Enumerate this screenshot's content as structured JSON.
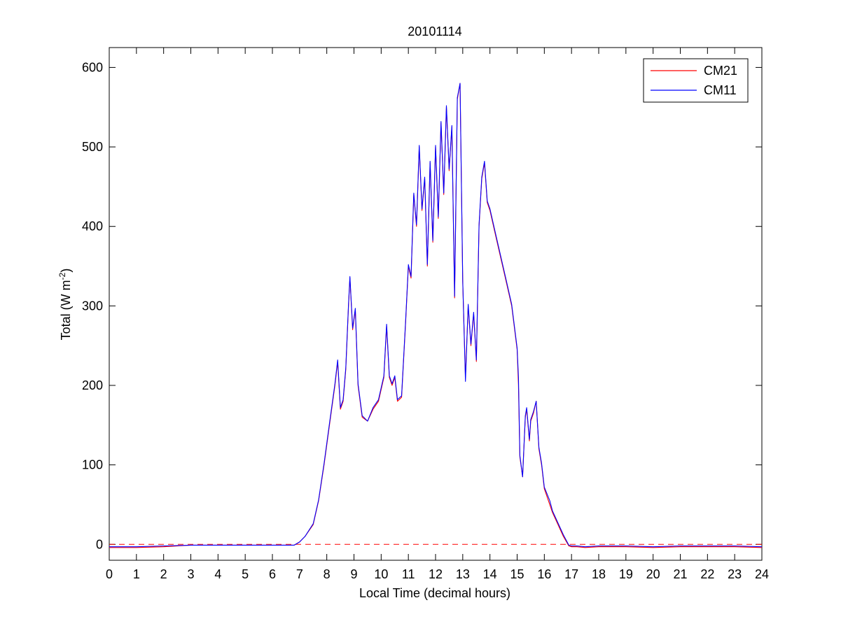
{
  "chart_data": {
    "type": "line",
    "title": "20101114",
    "xlabel": "Local Time (decimal hours)",
    "ylabel": {
      "text": "Total (W m",
      "superscript": "-2",
      "suffix": ")"
    },
    "xlim": [
      0,
      24
    ],
    "ylim": [
      -20,
      625
    ],
    "xticks": [
      0,
      1,
      2,
      3,
      4,
      5,
      6,
      7,
      8,
      9,
      10,
      11,
      12,
      13,
      14,
      15,
      16,
      17,
      18,
      19,
      20,
      21,
      22,
      23,
      24
    ],
    "yticks": [
      0,
      100,
      200,
      300,
      400,
      500,
      600
    ],
    "grid": false,
    "legend_position": "top-right",
    "reference_line": {
      "y": 0,
      "style": "dashed",
      "color": "#ff0000"
    },
    "series": [
      {
        "name": "CM21",
        "color": "#ff0000",
        "x": [
          0,
          1,
          2,
          3,
          4,
          5,
          6,
          6.8,
          7,
          7.2,
          7.5,
          7.7,
          7.9,
          8.1,
          8.3,
          8.4,
          8.5,
          8.6,
          8.7,
          8.8,
          8.85,
          8.95,
          9.05,
          9.15,
          9.3,
          9.5,
          9.7,
          9.9,
          10.1,
          10.2,
          10.3,
          10.4,
          10.5,
          10.6,
          10.75,
          10.9,
          11,
          11.1,
          11.2,
          11.3,
          11.4,
          11.5,
          11.6,
          11.7,
          11.8,
          11.9,
          12,
          12.1,
          12.2,
          12.3,
          12.4,
          12.5,
          12.6,
          12.7,
          12.8,
          12.9,
          13,
          13.1,
          13.2,
          13.3,
          13.4,
          13.5,
          13.6,
          13.7,
          13.8,
          13.9,
          14,
          14.2,
          14.4,
          14.6,
          14.8,
          15,
          15.05,
          15.1,
          15.2,
          15.3,
          15.35,
          15.45,
          15.5,
          15.6,
          15.7,
          15.8,
          15.9,
          16,
          16.2,
          16.3,
          16.5,
          16.7,
          16.9,
          17,
          17.2,
          17.5,
          18,
          19,
          20,
          21,
          22,
          23,
          24
        ],
        "y": [
          -4,
          -4,
          -3,
          -1,
          -1,
          -1,
          -1,
          -1,
          3,
          10,
          25,
          55,
          100,
          150,
          200,
          230,
          170,
          180,
          220,
          300,
          335,
          270,
          295,
          200,
          160,
          155,
          170,
          180,
          210,
          275,
          210,
          200,
          210,
          180,
          185,
          280,
          350,
          335,
          440,
          400,
          500,
          420,
          460,
          350,
          480,
          380,
          500,
          410,
          530,
          440,
          550,
          470,
          525,
          310,
          560,
          580,
          330,
          210,
          300,
          250,
          290,
          230,
          400,
          460,
          480,
          430,
          420,
          390,
          360,
          330,
          300,
          245,
          200,
          110,
          85,
          160,
          170,
          130,
          155,
          165,
          180,
          120,
          100,
          70,
          50,
          40,
          25,
          10,
          -2,
          -3,
          -3,
          -4,
          -3,
          -3,
          -4,
          -3,
          -3,
          -3,
          -4
        ]
      },
      {
        "name": "CM11",
        "color": "#0000ff",
        "x": [
          0,
          1,
          2,
          3,
          4,
          5,
          6,
          6.8,
          7,
          7.2,
          7.5,
          7.7,
          7.9,
          8.1,
          8.3,
          8.4,
          8.5,
          8.6,
          8.7,
          8.8,
          8.85,
          8.95,
          9.05,
          9.15,
          9.3,
          9.5,
          9.7,
          9.9,
          10.1,
          10.2,
          10.3,
          10.4,
          10.5,
          10.6,
          10.75,
          10.9,
          11,
          11.1,
          11.2,
          11.3,
          11.4,
          11.5,
          11.6,
          11.7,
          11.8,
          11.9,
          12,
          12.1,
          12.2,
          12.3,
          12.4,
          12.5,
          12.6,
          12.7,
          12.8,
          12.9,
          13,
          13.1,
          13.2,
          13.3,
          13.4,
          13.5,
          13.6,
          13.7,
          13.8,
          13.9,
          14,
          14.2,
          14.4,
          14.6,
          14.8,
          15,
          15.05,
          15.1,
          15.2,
          15.3,
          15.35,
          15.45,
          15.5,
          15.6,
          15.7,
          15.8,
          15.9,
          16,
          16.2,
          16.3,
          16.5,
          16.7,
          16.9,
          17,
          17.2,
          17.5,
          18,
          19,
          20,
          21,
          22,
          23,
          24
        ],
        "y": [
          -3,
          -3,
          -2,
          -1,
          -1,
          -1,
          -1,
          -1,
          3,
          10,
          26,
          56,
          102,
          152,
          202,
          232,
          172,
          182,
          222,
          302,
          337,
          272,
          297,
          202,
          162,
          155,
          172,
          182,
          212,
          277,
          212,
          202,
          212,
          182,
          187,
          282,
          352,
          337,
          442,
          402,
          502,
          422,
          462,
          352,
          482,
          382,
          502,
          412,
          532,
          442,
          552,
          472,
          527,
          312,
          562,
          580,
          332,
          205,
          302,
          252,
          292,
          232,
          402,
          462,
          482,
          432,
          422,
          392,
          362,
          332,
          302,
          247,
          210,
          112,
          85,
          162,
          172,
          132,
          157,
          167,
          180,
          122,
          102,
          72,
          55,
          42,
          27,
          12,
          -1,
          -2,
          -2,
          -3,
          -2,
          -2,
          -3,
          -2,
          -2,
          -2,
          -3
        ]
      }
    ]
  }
}
